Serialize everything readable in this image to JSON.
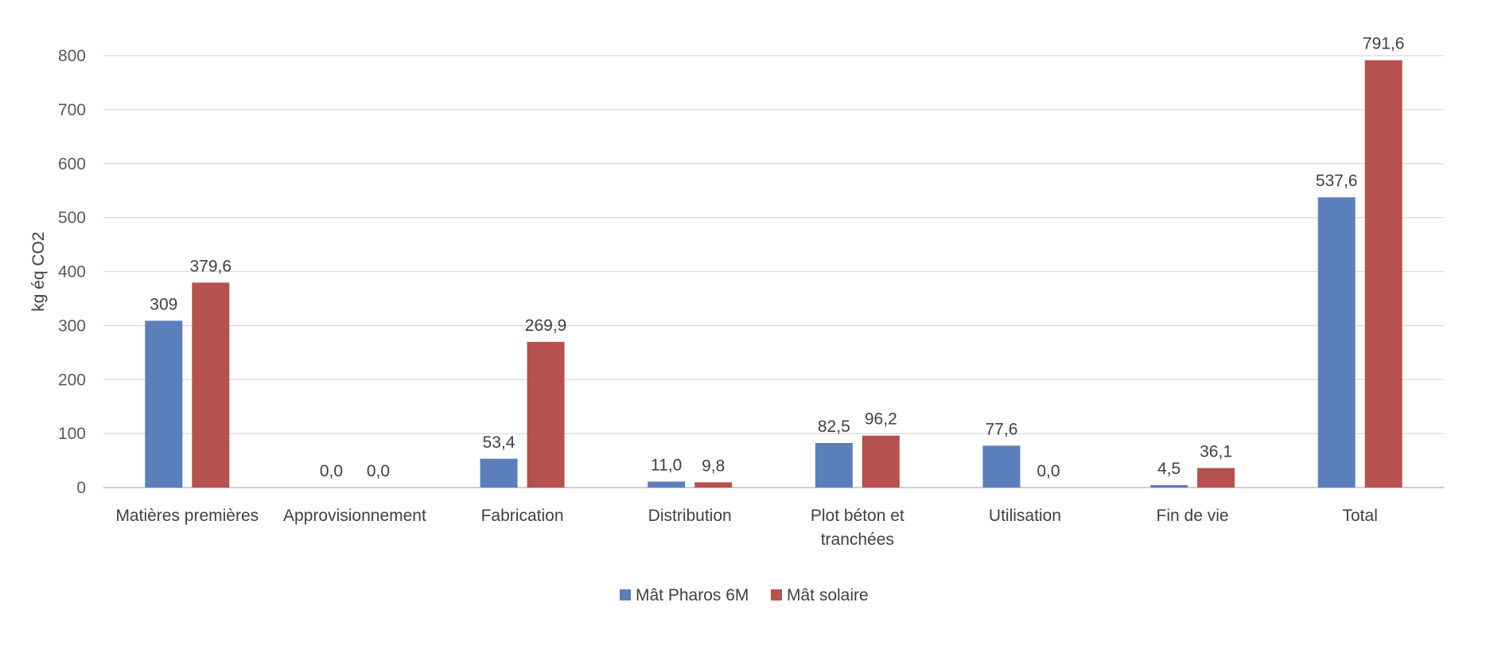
{
  "chart_data": {
    "type": "bar",
    "title": "",
    "xlabel": "",
    "ylabel": "kg éq CO2",
    "ylim": [
      0,
      800
    ],
    "yticks": [
      0,
      100,
      200,
      300,
      400,
      500,
      600,
      700,
      800
    ],
    "grid": true,
    "legend_position": "bottom",
    "categories": [
      [
        "Matières premières"
      ],
      [
        "Approvisionnement"
      ],
      [
        "Fabrication"
      ],
      [
        "Distribution"
      ],
      [
        "Plot béton et",
        "tranchées"
      ],
      [
        "Utilisation"
      ],
      [
        "Fin de vie"
      ],
      [
        "Total"
      ]
    ],
    "series": [
      {
        "name": "Mât Pharos 6M",
        "color": "#5b7fba",
        "values": [
          309,
          0,
          53.4,
          11.0,
          82.5,
          77.6,
          4.5,
          537.6
        ],
        "labels": [
          "309",
          "0,0",
          "53,4",
          "11,0",
          "82,5",
          "77,6",
          "4,5",
          "537,6"
        ]
      },
      {
        "name": "Mât solaire",
        "color": "#b5514e",
        "values": [
          379.6,
          0,
          269.9,
          9.8,
          96.2,
          0,
          36.1,
          791.6
        ],
        "labels": [
          "379,6",
          "0,0",
          "269,9",
          "9,8",
          "96,2",
          "0,0",
          "36,1",
          "791,6"
        ]
      }
    ]
  }
}
